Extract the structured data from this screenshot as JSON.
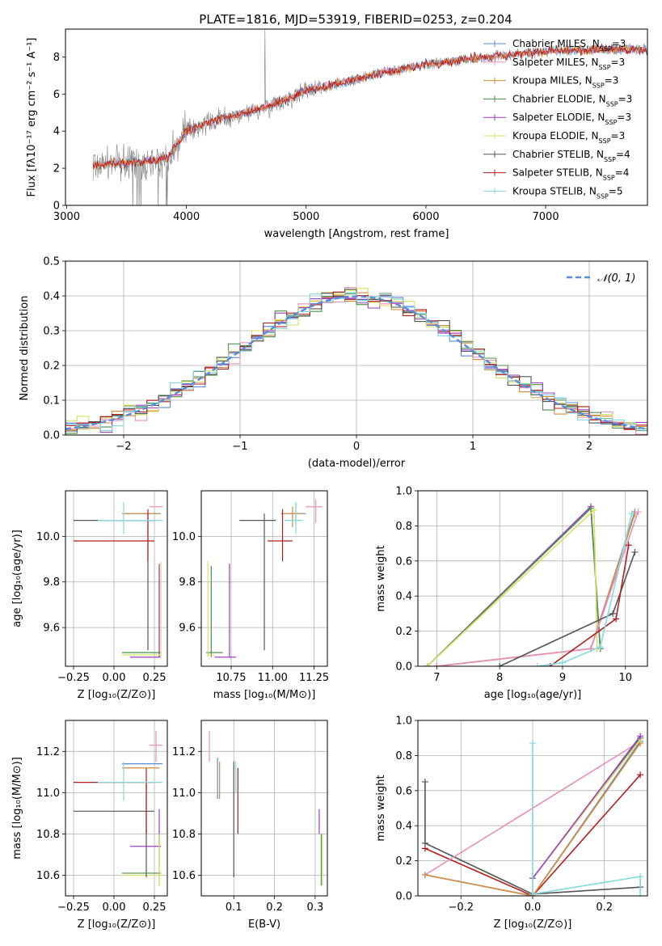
{
  "colors": {
    "Chabrier MILES": "#5b8bd6",
    "Salpeter MILES": "#e88fbd",
    "Kroupa MILES": "#d98a3a",
    "Chabrier ELODIE": "#4e8f4e",
    "Salpeter ELODIE": "#9b3fc7",
    "Kroupa ELODIE": "#d9e066",
    "Chabrier STELIB": "#555555",
    "Salpeter STELIB": "#b21f1f",
    "Kroupa STELIB": "#83d9e0"
  },
  "chart_data": [
    {
      "id": "spectrum",
      "type": "line",
      "title": "PLATE=1816, MJD=53919, FIBERID=0253, z=0.204",
      "xlabel": "wavelength [Angstrom, rest frame]",
      "ylabel": "Flux [fλ10⁻¹⁷ erg cm⁻² s⁻¹ A⁻¹]",
      "xlim": [
        2990,
        7850
      ],
      "ylim": [
        0,
        9.5
      ],
      "xticks": [
        "3000",
        "4000",
        "5000",
        "6000",
        "7000"
      ],
      "xtick_values": [
        3000,
        4000,
        5000,
        6000,
        7000
      ],
      "yticks": [
        "0",
        "2",
        "4",
        "6",
        "8"
      ],
      "ytick_values": [
        0,
        2,
        4,
        6,
        8
      ],
      "data_series": "observed spectrum plus 9 stellar population model fits",
      "continuum": [
        {
          "x": 3220,
          "y": 2.2
        },
        {
          "x": 3500,
          "y": 2.3
        },
        {
          "x": 3700,
          "y": 2.4
        },
        {
          "x": 3850,
          "y": 2.6
        },
        {
          "x": 4000,
          "y": 4.0
        },
        {
          "x": 4200,
          "y": 4.5
        },
        {
          "x": 4500,
          "y": 5.0
        },
        {
          "x": 4800,
          "y": 5.6
        },
        {
          "x": 5000,
          "y": 6.2
        },
        {
          "x": 5300,
          "y": 6.6
        },
        {
          "x": 5600,
          "y": 7.1
        },
        {
          "x": 6000,
          "y": 7.6
        },
        {
          "x": 6500,
          "y": 8.0
        },
        {
          "x": 7000,
          "y": 8.3
        },
        {
          "x": 7400,
          "y": 8.4
        }
      ],
      "legend": [
        {
          "name": "Chabrier MILES, N",
          "sub": "SSP",
          "suffix": "=3"
        },
        {
          "name": "Salpeter MILES, N",
          "sub": "SSP",
          "suffix": "=3"
        },
        {
          "name": "Kroupa MILES, N",
          "sub": "SSP",
          "suffix": "=3"
        },
        {
          "name": "Chabrier ELODIE, N",
          "sub": "SSP",
          "suffix": "=3"
        },
        {
          "name": "Salpeter ELODIE, N",
          "sub": "SSP",
          "suffix": "=3"
        },
        {
          "name": "Kroupa ELODIE, N",
          "sub": "SSP",
          "suffix": "=3"
        },
        {
          "name": "Chabrier STELIB, N",
          "sub": "SSP",
          "suffix": "=4"
        },
        {
          "name": "Salpeter STELIB, N",
          "sub": "SSP",
          "suffix": "=4"
        },
        {
          "name": "Kroupa STELIB, N",
          "sub": "SSP",
          "suffix": "=5"
        }
      ],
      "legend_placement": "top-right"
    },
    {
      "id": "residuals",
      "type": "histogram",
      "xlabel": "(data-model)/error",
      "ylabel": "Normed distribution",
      "xlim": [
        -2.5,
        2.5
      ],
      "ylim": [
        0,
        0.5
      ],
      "xticks": [
        "−2",
        "−1",
        "0",
        "1",
        "2"
      ],
      "xtick_values": [
        -2,
        -1,
        0,
        1,
        2
      ],
      "yticks": [
        "0.0",
        "0.1",
        "0.2",
        "0.3",
        "0.4",
        "0.5"
      ],
      "ytick_values": [
        0,
        0.1,
        0.2,
        0.3,
        0.4,
        0.5
      ],
      "grid": true,
      "reference_curve": "𝒩(0, 1)",
      "legend_placement": "top-right"
    },
    {
      "id": "age-vs-Z",
      "type": "errorbar",
      "xlabel": "Z [log₁₀(Z/Z⊙)]",
      "ylabel": "age  [log₁₀(age/yr)]",
      "xlim": [
        -0.3,
        0.33
      ],
      "ylim": [
        9.43,
        10.2
      ],
      "xticks": [
        "−0.25",
        "0.00",
        "0.25"
      ],
      "xtick_values": [
        -0.25,
        0,
        0.25
      ],
      "yticks": [
        "9.6",
        "9.8",
        "10.0"
      ],
      "ytick_values": [
        9.6,
        9.8,
        10.0
      ],
      "grid": true,
      "points": [
        {
          "model": "Chabrier MILES",
          "x": 0.18,
          "xlo": 0.05,
          "xhi": 0.29,
          "y": 10.1,
          "ylo": 10.1,
          "yhi": 10.1
        },
        {
          "model": "Salpeter MILES",
          "x": 0.27,
          "xlo": 0.22,
          "xhi": 0.3,
          "y": 10.13,
          "ylo": 10.13,
          "yhi": 10.13
        },
        {
          "model": "Kroupa MILES",
          "x": 0.2,
          "xlo": 0.05,
          "xhi": 0.28,
          "y": 10.1,
          "ylo": 10.1,
          "yhi": 10.1
        },
        {
          "model": "Chabrier ELODIE",
          "x": 0.28,
          "xlo": 0.05,
          "xhi": 0.29,
          "y": 9.49,
          "ylo": 9.47,
          "yhi": 9.87
        },
        {
          "model": "Salpeter ELODIE",
          "x": 0.28,
          "xlo": 0.1,
          "xhi": 0.29,
          "y": 9.47,
          "ylo": 9.47,
          "yhi": 9.88
        },
        {
          "model": "Kroupa ELODIE",
          "x": 0.29,
          "xlo": 0.05,
          "xhi": 0.29,
          "y": 9.48,
          "ylo": 9.47,
          "yhi": 9.89
        },
        {
          "model": "Chabrier STELIB",
          "x": 0.21,
          "xlo": -0.25,
          "xhi": 0.25,
          "y": 10.07,
          "ylo": 9.5,
          "yhi": 10.1
        },
        {
          "model": "Salpeter STELIB",
          "x": 0.21,
          "xlo": -0.25,
          "xhi": 0.25,
          "y": 9.98,
          "ylo": 9.89,
          "yhi": 10.12
        },
        {
          "model": "Kroupa STELIB",
          "x": 0.06,
          "xlo": -0.1,
          "xhi": 0.3,
          "y": 10.07,
          "ylo": 10.01,
          "yhi": 10.15
        }
      ]
    },
    {
      "id": "age-vs-mass",
      "type": "errorbar",
      "xlabel": "mass [log₁₀(M/M⊙)]",
      "ylabel": "",
      "xlim": [
        10.57,
        11.33
      ],
      "ylim": [
        9.43,
        10.2
      ],
      "xticks": [
        "10.75",
        "11.00",
        "11.25"
      ],
      "xtick_values": [
        10.75,
        11.0,
        11.25
      ],
      "yticks": [
        "9.6",
        "9.8",
        "10.0"
      ],
      "ytick_values": [
        9.6,
        9.8,
        10.0
      ],
      "grid": true,
      "points": [
        {
          "model": "Chabrier MILES",
          "x": 11.14,
          "xlo": 11.05,
          "xhi": 11.2,
          "y": 10.1,
          "ylo": 10.05,
          "yhi": 10.15
        },
        {
          "model": "Salpeter MILES",
          "x": 11.26,
          "xlo": 11.2,
          "xhi": 11.3,
          "y": 10.13,
          "ylo": 10.06,
          "yhi": 10.16
        },
        {
          "model": "Kroupa MILES",
          "x": 11.12,
          "xlo": 11.05,
          "xhi": 11.18,
          "y": 10.1,
          "ylo": 10.04,
          "yhi": 10.13
        },
        {
          "model": "Chabrier ELODIE",
          "x": 10.63,
          "xlo": 10.6,
          "xhi": 10.7,
          "y": 9.49,
          "ylo": 9.47,
          "yhi": 9.87
        },
        {
          "model": "Salpeter ELODIE",
          "x": 10.74,
          "xlo": 10.65,
          "xhi": 10.78,
          "y": 9.47,
          "ylo": 9.47,
          "yhi": 9.88
        },
        {
          "model": "Kroupa ELODIE",
          "x": 10.61,
          "xlo": 10.6,
          "xhi": 10.65,
          "y": 9.48,
          "ylo": 9.47,
          "yhi": 9.89
        },
        {
          "model": "Chabrier STELIB",
          "x": 10.95,
          "xlo": 10.8,
          "xhi": 11.02,
          "y": 10.07,
          "ylo": 9.5,
          "yhi": 10.1
        },
        {
          "model": "Salpeter STELIB",
          "x": 11.06,
          "xlo": 10.97,
          "xhi": 11.12,
          "y": 9.98,
          "ylo": 9.89,
          "yhi": 10.12
        },
        {
          "model": "Kroupa STELIB",
          "x": 11.14,
          "xlo": 11.07,
          "xhi": 11.18,
          "y": 10.07,
          "ylo": 10.01,
          "yhi": 10.15
        }
      ]
    },
    {
      "id": "weight-vs-age",
      "type": "line",
      "xlabel": "age  [log₁₀(age/yr)]",
      "ylabel": "mass weight",
      "xlim": [
        6.7,
        10.35
      ],
      "ylim": [
        0,
        1
      ],
      "xticks": [
        "7",
        "8",
        "9",
        "10"
      ],
      "xtick_values": [
        7,
        8,
        9,
        10
      ],
      "yticks": [
        "0.0",
        "0.2",
        "0.4",
        "0.6",
        "0.8",
        "1.0"
      ],
      "ytick_values": [
        0,
        0.2,
        0.4,
        0.6,
        0.8,
        1.0
      ],
      "grid": true
    },
    {
      "id": "mass-vs-Z",
      "type": "errorbar",
      "xlabel": "Z [log₁₀(Z/Z⊙)]",
      "ylabel": "mass [log₁₀(M/M⊙)]",
      "xlim": [
        -0.3,
        0.33
      ],
      "ylim": [
        10.5,
        11.35
      ],
      "xticks": [
        "−0.25",
        "0.00",
        "0.25"
      ],
      "xtick_values": [
        -0.25,
        0,
        0.25
      ],
      "yticks": [
        "10.6",
        "10.8",
        "11.0",
        "11.2"
      ],
      "ytick_values": [
        10.6,
        10.8,
        11.0,
        11.2
      ],
      "grid": true,
      "points": [
        {
          "model": "Chabrier MILES",
          "x": 0.18,
          "xlo": 0.05,
          "xhi": 0.3,
          "y": 11.14,
          "ylo": 11.14,
          "yhi": 11.14
        },
        {
          "model": "Salpeter MILES",
          "x": 0.26,
          "xlo": 0.22,
          "xhi": 0.3,
          "y": 11.23,
          "ylo": 11.15,
          "yhi": 11.3
        },
        {
          "model": "Kroupa MILES",
          "x": 0.2,
          "xlo": 0.05,
          "xhi": 0.28,
          "y": 11.12,
          "ylo": 11.12,
          "yhi": 11.12
        },
        {
          "model": "Chabrier ELODIE",
          "x": 0.28,
          "xlo": 0.05,
          "xhi": 0.29,
          "y": 10.61,
          "ylo": 10.55,
          "yhi": 10.81
        },
        {
          "model": "Salpeter ELODIE",
          "x": 0.28,
          "xlo": 0.1,
          "xhi": 0.29,
          "y": 10.74,
          "ylo": 10.74,
          "yhi": 10.92
        },
        {
          "model": "Kroupa ELODIE",
          "x": 0.28,
          "xlo": 0.05,
          "xhi": 0.3,
          "y": 10.6,
          "ylo": 10.55,
          "yhi": 10.8
        },
        {
          "model": "Chabrier STELIB",
          "x": 0.2,
          "xlo": -0.25,
          "xhi": 0.25,
          "y": 10.91,
          "ylo": 10.59,
          "yhi": 11.05
        },
        {
          "model": "Salpeter STELIB",
          "x": 0.2,
          "xlo": -0.25,
          "xhi": 0.25,
          "y": 11.05,
          "ylo": 10.8,
          "yhi": 11.12
        },
        {
          "model": "Kroupa STELIB",
          "x": 0.06,
          "xlo": -0.1,
          "xhi": 0.3,
          "y": 11.05,
          "ylo": 10.96,
          "yhi": 11.15
        }
      ]
    },
    {
      "id": "mass-vs-ebv",
      "type": "errorbar",
      "xlabel": "E(B-V)",
      "ylabel": "",
      "xlim": [
        0.02,
        0.33
      ],
      "ylim": [
        10.5,
        11.35
      ],
      "xticks": [
        "0.1",
        "0.2",
        "0.3"
      ],
      "xtick_values": [
        0.1,
        0.2,
        0.3
      ],
      "yticks": [
        "10.6",
        "10.8",
        "11.0",
        "11.2"
      ],
      "ytick_values": [
        10.6,
        10.8,
        11.0,
        11.2
      ],
      "grid": true,
      "points": [
        {
          "model": "Chabrier MILES",
          "x": 0.06,
          "xlo": 0.06,
          "xhi": 0.06,
          "y": 11.1,
          "ylo": 10.97,
          "yhi": 11.17
        },
        {
          "model": "Salpeter MILES",
          "x": 0.04,
          "xlo": 0.04,
          "xhi": 0.04,
          "y": 11.22,
          "ylo": 11.15,
          "yhi": 11.3
        },
        {
          "model": "Kroupa MILES",
          "x": 0.065,
          "xlo": 0.065,
          "xhi": 0.065,
          "y": 11.05,
          "ylo": 10.97,
          "yhi": 11.15
        },
        {
          "model": "Chabrier ELODIE",
          "x": 0.315,
          "xlo": 0.315,
          "xhi": 0.315,
          "y": 10.65,
          "ylo": 10.55,
          "yhi": 10.8
        },
        {
          "model": "Salpeter ELODIE",
          "x": 0.31,
          "xlo": 0.31,
          "xhi": 0.31,
          "y": 10.85,
          "ylo": 10.8,
          "yhi": 10.92
        },
        {
          "model": "Kroupa ELODIE",
          "x": 0.318,
          "xlo": 0.318,
          "xhi": 0.318,
          "y": 10.65,
          "ylo": 10.55,
          "yhi": 10.8
        },
        {
          "model": "Chabrier STELIB",
          "x": 0.1,
          "xlo": 0.1,
          "xhi": 0.1,
          "y": 10.9,
          "ylo": 10.59,
          "yhi": 11.15
        },
        {
          "model": "Salpeter STELIB",
          "x": 0.11,
          "xlo": 0.11,
          "xhi": 0.11,
          "y": 11.0,
          "ylo": 10.8,
          "yhi": 11.12
        },
        {
          "model": "Kroupa STELIB",
          "x": 0.105,
          "xlo": 0.105,
          "xhi": 0.105,
          "y": 11.1,
          "ylo": 11.0,
          "yhi": 11.15
        }
      ]
    },
    {
      "id": "weight-vs-Z",
      "type": "line",
      "xlabel": "Z [log₁₀(Z/Z⊙)]",
      "ylabel": "mass weight",
      "xlim": [
        -0.32,
        0.32
      ],
      "ylim": [
        0,
        1
      ],
      "xticks": [
        "−0.2",
        "0.0",
        "0.2"
      ],
      "xtick_values": [
        -0.2,
        0,
        0.2
      ],
      "yticks": [
        "0.0",
        "0.2",
        "0.4",
        "0.6",
        "0.8",
        "1.0"
      ],
      "ytick_values": [
        0,
        0.2,
        0.4,
        0.6,
        0.8,
        1.0
      ],
      "grid": true
    }
  ]
}
